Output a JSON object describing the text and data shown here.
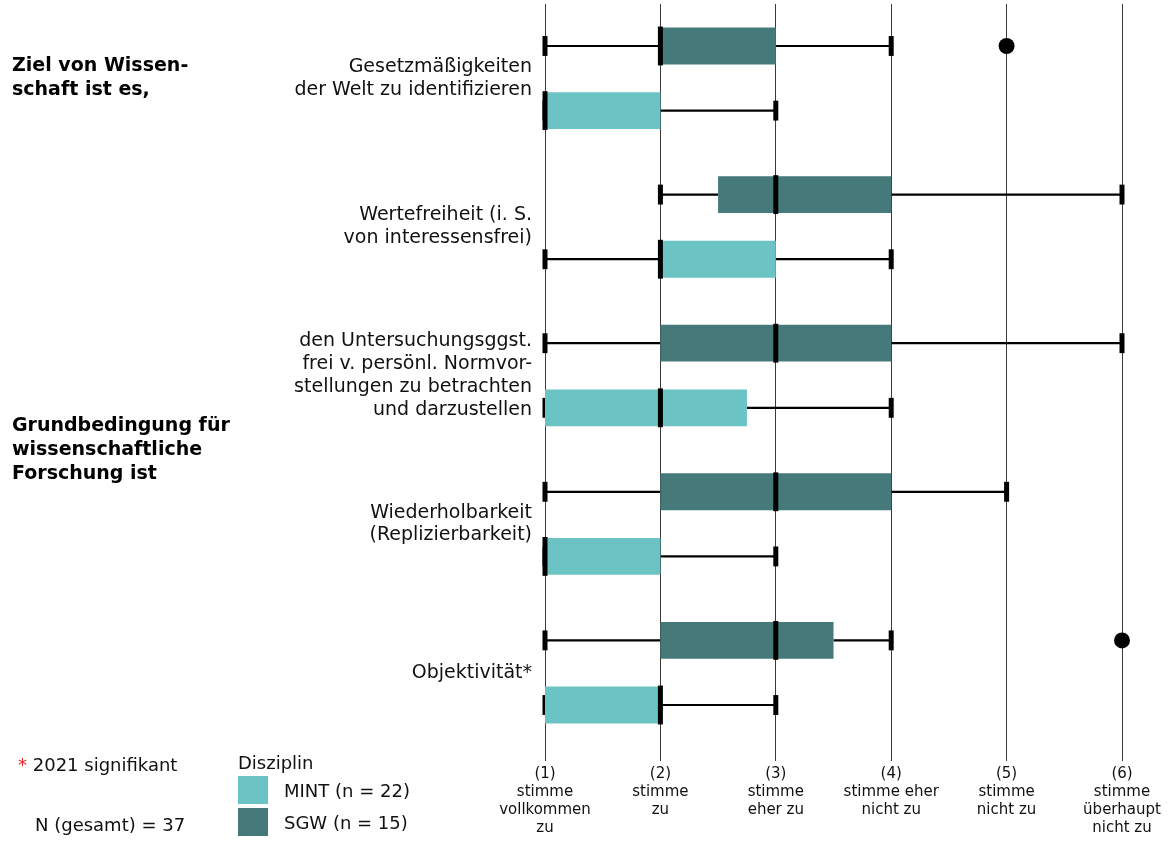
{
  "chart_data": {
    "type": "box",
    "orientation": "horizontal",
    "categories": [
      "Gesetzmäßigkeiten\nder Welt zu identifizieren",
      "Wertefreiheit (i. S.\nvon interessensfrei)",
      "den Untersuchungsggst.\nfrei v. persönl. Normvor-\nstellungen zu betrachten\nund darzustellen",
      "Wiederholbarkeit\n(Replizierbarkeit)",
      "Objektivität*"
    ],
    "series": [
      {
        "name": "MINT (n = 22)",
        "color": "#6cc3c4",
        "boxes": [
          {
            "low": 1,
            "q1": 1,
            "median": 1,
            "q3": 2,
            "high": 3
          },
          {
            "low": 1,
            "q1": 2,
            "median": 2,
            "q3": 3,
            "high": 4
          },
          {
            "low": 1,
            "q1": 1,
            "median": 2,
            "q3": 2.75,
            "high": 4
          },
          {
            "low": 1,
            "q1": 1,
            "median": 1,
            "q3": 2,
            "high": 3
          },
          {
            "low": 1,
            "q1": 1,
            "median": 2,
            "q3": 2,
            "high": 3
          }
        ]
      },
      {
        "name": "SGW (n = 15)",
        "color": "#45797a",
        "boxes": [
          {
            "low": 1,
            "q1": 2,
            "median": 2,
            "q3": 3,
            "high": 4,
            "outliers": [
              5
            ]
          },
          {
            "low": 2,
            "q1": 2.5,
            "median": 3,
            "q3": 4,
            "high": 6
          },
          {
            "low": 1,
            "q1": 2,
            "median": 3,
            "q3": 4,
            "high": 6
          },
          {
            "low": 1,
            "q1": 2,
            "median": 3,
            "q3": 4,
            "high": 5
          },
          {
            "low": 1,
            "q1": 2,
            "median": 3,
            "q3": 3.5,
            "high": 4,
            "outliers": [
              6
            ]
          }
        ]
      }
    ],
    "xlim": [
      1,
      6
    ],
    "xticks": [
      {
        "value": 1,
        "label": "(1)\nstimme\nvollkommen\nzu"
      },
      {
        "value": 2,
        "label": "(2)\nstimme\nzu"
      },
      {
        "value": 3,
        "label": "(3)\nstimme\neher zu"
      },
      {
        "value": 4,
        "label": "(4)\nstimme eher\nnicht zu"
      },
      {
        "value": 5,
        "label": "(5)\nstimme\nnicht zu"
      },
      {
        "value": 6,
        "label": "(6)\nstimme\nüberhaupt\nnicht zu"
      }
    ],
    "grid": "x",
    "legend": "bottom left",
    "legend_title": "Disziplin",
    "annotations": [
      "Ziel von Wissen-\nschaft ist es,",
      "Grundbedingung für\nwissenschaftliche\nForschung ist",
      "* 2021 signifikant",
      "N (gesamt) = 37"
    ]
  }
}
